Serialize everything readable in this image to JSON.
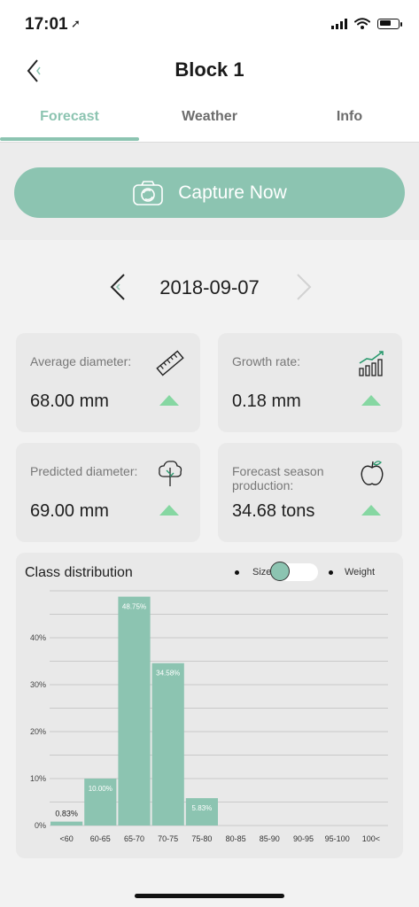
{
  "status": {
    "time": "17:01",
    "nav_glyph": "➚"
  },
  "header": {
    "title": "Block 1"
  },
  "tabs": [
    {
      "label": "Forecast",
      "active": true
    },
    {
      "label": "Weather",
      "active": false
    },
    {
      "label": "Info",
      "active": false
    }
  ],
  "capture": {
    "label": "Capture Now",
    "icon": "camera-icon"
  },
  "date": {
    "value": "2018-09-07"
  },
  "cards": [
    {
      "label": "Average diameter:",
      "value": "68.00 mm",
      "icon": "ruler-icon",
      "trend": "up"
    },
    {
      "label": "Growth rate:",
      "value": "0.18 mm",
      "icon": "growth-chart-icon",
      "trend": "up"
    },
    {
      "label": "Predicted diameter:",
      "value": "69.00 mm",
      "icon": "tree-icon",
      "trend": "up"
    },
    {
      "label": "Forecast season production:",
      "value": "34.68 tons",
      "icon": "apple-icon",
      "trend": "up"
    }
  ],
  "chart_section": {
    "title": "Class distribution",
    "toggle": {
      "left_label": "Size",
      "right_label": "Weight",
      "selected": "Size"
    }
  },
  "colors": {
    "accent": "#8cc4b1",
    "trend_up": "#86d7a2",
    "card_bg": "#e9e9e9"
  },
  "chart_data": {
    "type": "bar",
    "categories": [
      "<60",
      "60-65",
      "65-70",
      "70-75",
      "75-80",
      "80-85",
      "85-90",
      "90-95",
      "95-100",
      "100<"
    ],
    "values": [
      0.83,
      10.0,
      48.75,
      34.58,
      5.83,
      0,
      0,
      0,
      0,
      0
    ],
    "data_labels": [
      "0.83%",
      "10.00%",
      "48.75%",
      "34.58%",
      "5.83%",
      "",
      "",
      "",
      "",
      ""
    ],
    "yticks": [
      "0%",
      "10%",
      "20%",
      "30%",
      "40%"
    ],
    "ylim": [
      0,
      50
    ],
    "grid": true,
    "color": "#8cc4b1"
  }
}
